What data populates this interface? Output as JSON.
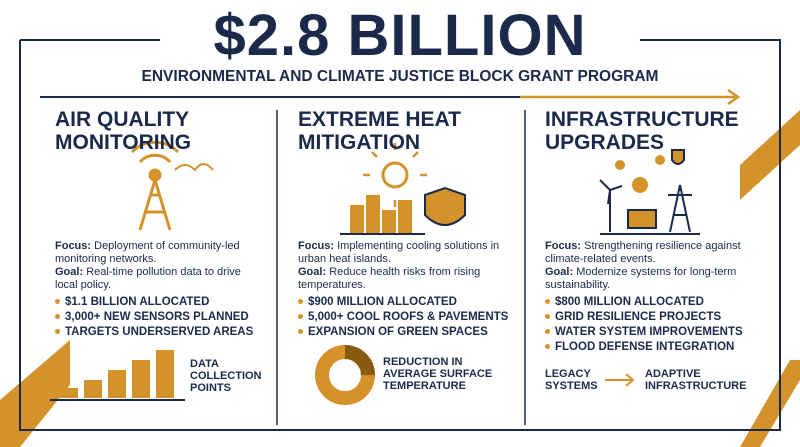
{
  "header": {
    "title": "$2.8 BILLION",
    "subtitle": "ENVIRONMENTAL AND CLIMATE JUSTICE BLOCK GRANT PROGRAM"
  },
  "columns": [
    {
      "heading": "AIR QUALITY MONITORING",
      "focus_label": "Focus:",
      "focus": "Deployment of community-led monitoring networks.",
      "goal_label": "Goal:",
      "goal": "Real-time pollution data to drive local policy.",
      "bullets": [
        "$1.1 BILLION ALLOCATED",
        "3,000+ NEW SENSORS PLANNED",
        "TARGETS UNDERSERVED AREAS"
      ],
      "footer": "DATA COLLECTION POINTS"
    },
    {
      "heading": "EXTREME HEAT MITIGATION",
      "focus_label": "Focus:",
      "focus": "Implementing cooling solutions in urban heat islands.",
      "goal_label": "Goal:",
      "goal": "Reduce health risks from rising temperatures.",
      "bullets": [
        "$900 MILLION ALLOCATED",
        "5,000+ COOL ROOFS & PAVEMENTS",
        "EXPANSION OF GREEN SPACES"
      ],
      "footer": "REDUCTION IN AVERAGE SURFACE TEMPERATURE"
    },
    {
      "heading": "INFRASTRUCTURE UPGRADES",
      "focus_label": "Focus:",
      "focus": "Strengthening resilience against climate-related events.",
      "goal_label": "Goal:",
      "goal": "Modernize systems for long-term sustainability.",
      "bullets": [
        "$800 MILLION ALLOCATED",
        "GRID RESILIENCE PROJECTS",
        "WATER SYSTEM IMPROVEMENTS",
        "FLOOD DEFENSE INTEGRATION"
      ],
      "footer_from": "LEGACY SYSTEMS",
      "footer_to": "ADAPTIVE INFRASTRUCTURE"
    }
  ]
}
